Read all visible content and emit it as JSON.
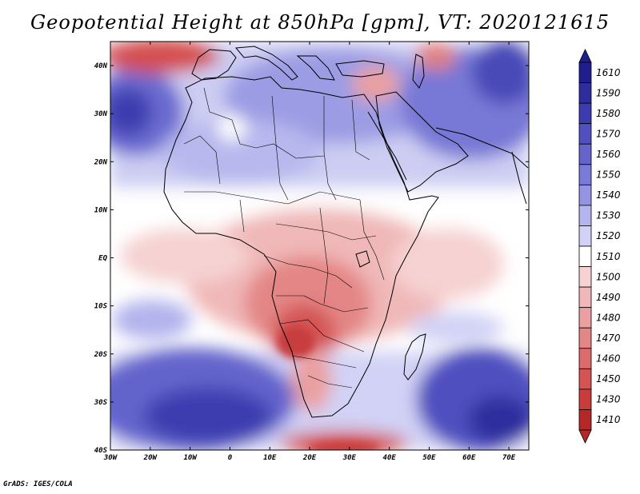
{
  "title": "Geopotential Height at 850hPa [gpm], VT: 2020121615",
  "credit": "GrADS: IGES/COLA",
  "map": {
    "region": "Africa",
    "variable": "Geopotential Height at 850hPa",
    "units": "gpm",
    "valid_time": "2020121615",
    "lon_range": [
      -30,
      75
    ],
    "lat_range": [
      -40,
      45
    ],
    "x_ticks": [
      {
        "value": -30,
        "label": "30W"
      },
      {
        "value": -20,
        "label": "20W"
      },
      {
        "value": -10,
        "label": "10W"
      },
      {
        "value": 0,
        "label": "0"
      },
      {
        "value": 10,
        "label": "10E"
      },
      {
        "value": 20,
        "label": "20E"
      },
      {
        "value": 30,
        "label": "30E"
      },
      {
        "value": 40,
        "label": "40E"
      },
      {
        "value": 50,
        "label": "50E"
      },
      {
        "value": 60,
        "label": "60E"
      },
      {
        "value": 70,
        "label": "70E"
      }
    ],
    "y_ticks": [
      {
        "value": 40,
        "label": "40N"
      },
      {
        "value": 30,
        "label": "30N"
      },
      {
        "value": 20,
        "label": "20N"
      },
      {
        "value": 10,
        "label": "10N"
      },
      {
        "value": 0,
        "label": "EQ"
      },
      {
        "value": -10,
        "label": "10S"
      },
      {
        "value": -20,
        "label": "20S"
      },
      {
        "value": -30,
        "label": "30S"
      },
      {
        "value": -40,
        "label": "40S"
      }
    ]
  },
  "colorbar": {
    "levels": [
      {
        "label": "1610",
        "color": "#1e1e8c"
      },
      {
        "label": "1590",
        "color": "#2d2d9e"
      },
      {
        "label": "1580",
        "color": "#3c3cb0"
      },
      {
        "label": "1570",
        "color": "#5050c0"
      },
      {
        "label": "1560",
        "color": "#6464cc"
      },
      {
        "label": "1550",
        "color": "#7a7ad8"
      },
      {
        "label": "1540",
        "color": "#9494e2"
      },
      {
        "label": "1530",
        "color": "#b4b4ee"
      },
      {
        "label": "1520",
        "color": "#d2d2f6"
      },
      {
        "label": "1510",
        "color": "#ffffff"
      },
      {
        "label": "1500",
        "color": "#f6d2d2"
      },
      {
        "label": "1490",
        "color": "#f0b8b8"
      },
      {
        "label": "1480",
        "color": "#eaa0a0"
      },
      {
        "label": "1470",
        "color": "#e48686"
      },
      {
        "label": "1460",
        "color": "#dc6c6c"
      },
      {
        "label": "1450",
        "color": "#d45454"
      },
      {
        "label": "1430",
        "color": "#c83c3c"
      },
      {
        "label": "1410",
        "color": "#b42828"
      }
    ]
  }
}
